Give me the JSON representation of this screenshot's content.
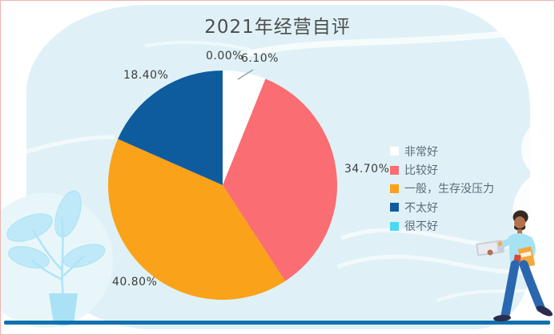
{
  "title": "2021年经营自评",
  "chart_data": {
    "type": "pie",
    "title": "2021年经营自评",
    "categories": [
      "非常好",
      "比较好",
      "一般，生存没压力",
      "不太好",
      "很不好"
    ],
    "values": [
      6.1,
      34.7,
      40.8,
      18.4,
      0.0
    ],
    "labels": [
      "6.10%",
      "34.70%",
      "40.80%",
      "18.40%",
      "0.00%"
    ],
    "colors": [
      "#FFFFFF",
      "#FA6D72",
      "#FAA219",
      "#0E5C9E",
      "#4BD9F2"
    ],
    "unit": "percent",
    "legend_position": "right",
    "start_angle_deg": 0,
    "direction": "clockwise"
  },
  "decor": {
    "background_blob_color": "#DFF1F6",
    "ground_line_color": "#1171AF",
    "title_color": "#4D4D4D",
    "label_color": "#3C3C3C",
    "legend_text_color": "#5C6B7A"
  }
}
